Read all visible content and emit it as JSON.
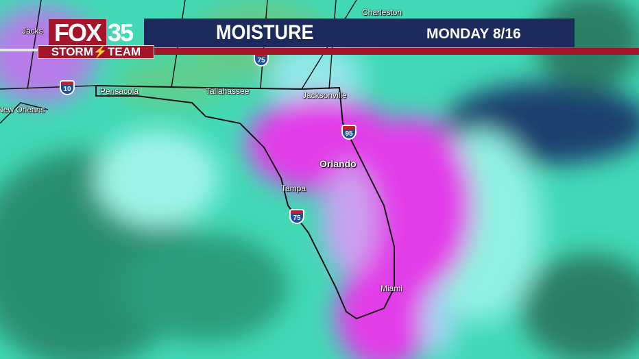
{
  "header": {
    "station_number": "35",
    "station_brand": "FOX",
    "team": "STORM",
    "team_suffix": "TEAM",
    "title": "MOISTURE",
    "date": "MONDAY  8/16"
  },
  "colors": {
    "header_navy": "#1c2a5c",
    "brand_red": "#a4152a",
    "high_moisture": "#e23ee8",
    "moderate_moisture": "#3fe0c8",
    "low_moisture": "#1f6a55",
    "dry": "#1e3f6e"
  },
  "cities": [
    "Charleston",
    "Jacks",
    "Pensacola",
    "Tallahassee",
    "Jacksonville",
    "New Orleans",
    "Orlando",
    "Tampa",
    "Miami"
  ],
  "interstates": [
    "75",
    "10",
    "95",
    "75"
  ]
}
